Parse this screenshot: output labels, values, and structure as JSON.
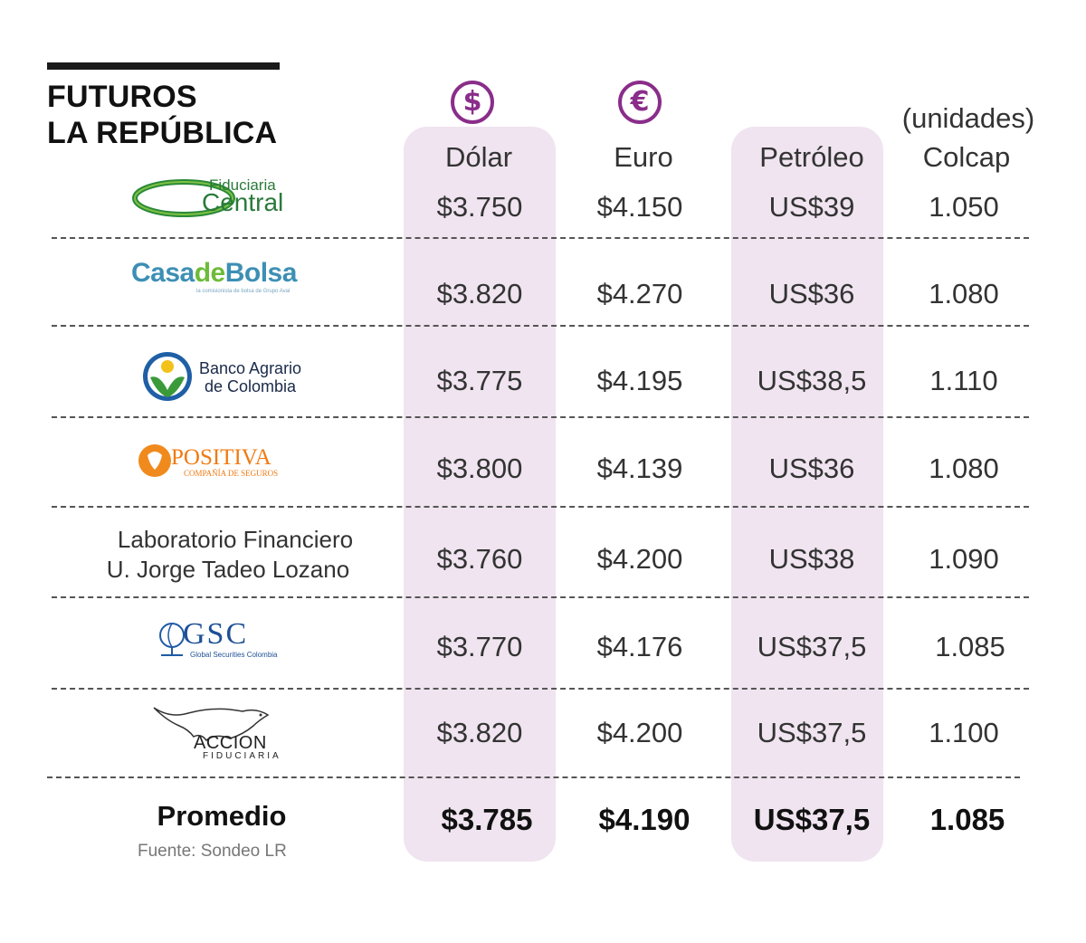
{
  "title_line1": "FUTUROS",
  "title_line2": "LA REPÚBLICA",
  "icons": {
    "dollar": "$",
    "euro": "€",
    "dollar_icon": "dollar-circle-icon",
    "euro_icon": "euro-circle-icon"
  },
  "colors": {
    "accent": "#8a2d8a",
    "column_highlight": "#efe4ef"
  },
  "units_note": "(unidades)",
  "chart_data": {
    "type": "table",
    "columns": [
      "Dólar",
      "Euro",
      "Petróleo",
      "Colcap"
    ],
    "rows": [
      {
        "entity": "Fiduciaria Central",
        "values": [
          "$3.750",
          "$4.150",
          "US$39",
          "1.050"
        ]
      },
      {
        "entity": "CasadeBolsa",
        "values": [
          "$3.820",
          "$4.270",
          "US$36",
          "1.080"
        ]
      },
      {
        "entity": "Banco Agrario de Colombia",
        "values": [
          "$3.775",
          "$4.195",
          "US$38,5",
          "1.110"
        ]
      },
      {
        "entity": "Positiva",
        "values": [
          "$3.800",
          "$4.139",
          "US$36",
          "1.080"
        ]
      },
      {
        "entity": "Laboratorio Financiero U. Jorge Tadeo Lozano",
        "values": [
          "$3.760",
          "$4.200",
          "US$38",
          "1.090"
        ]
      },
      {
        "entity": "GSC",
        "values": [
          "$3.770",
          "$4.176",
          "US$37,5",
          "1.085"
        ]
      },
      {
        "entity": "Accion",
        "values": [
          "$3.820",
          "$4.200",
          "US$37,5",
          "1.100"
        ]
      }
    ],
    "average_label": "Promedio",
    "average": [
      "$3.785",
      "$4.190",
      "US$37,5",
      "1.085"
    ],
    "source": "Fuente: Sondeo LR"
  },
  "logos": {
    "fiduciaria_line1": "Fiduciaria",
    "fiduciaria_line2": "Central",
    "casadebolsa_a": "Casa",
    "casadebolsa_b": "de",
    "casadebolsa_c": "Bolsa",
    "casadebolsa_sub": "la comisionista de bolsa de Grupo Aval",
    "banco_line1": "Banco Agrario",
    "banco_line2": "de Colombia",
    "positiva": "POSITIVA",
    "positiva_sub": "COMPAÑÍA DE SEGUROS",
    "lab_line1": "Laboratorio Financiero",
    "lab_line2": "U. Jorge Tadeo Lozano",
    "gsc": "GSC",
    "gsc_sub": "Global Securities Colombia",
    "accion": "ACCION",
    "accion_sub": "FIDUCIARIA"
  }
}
